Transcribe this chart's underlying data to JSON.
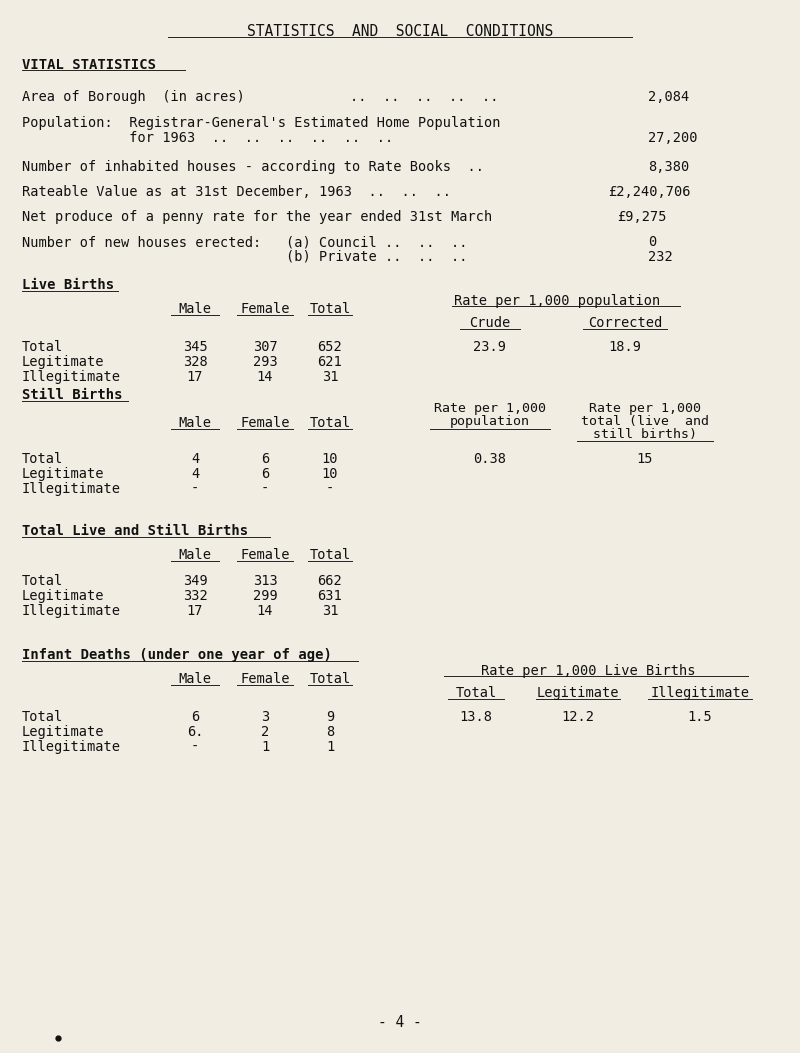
{
  "title": "STATISTICS  AND  SOCIAL  CONDITIONS",
  "bg_color": "#f2ede3",
  "text_color": "#1a1a1a",
  "live_births": {
    "header": "Live Births",
    "rows": [
      {
        "label": "Total",
        "male": "345",
        "female": "307",
        "total": "652",
        "crude": "23.9",
        "corrected": "18.9"
      },
      {
        "label": "Legitimate",
        "male": "328",
        "female": "293",
        "total": "621",
        "crude": "",
        "corrected": ""
      },
      {
        "label": "Illegitimate",
        "male": "17",
        "female": "14",
        "total": "31",
        "crude": "",
        "corrected": ""
      }
    ]
  },
  "still_births": {
    "header": "Still Births",
    "rows": [
      {
        "label": "Total",
        "male": "4",
        "female": "6",
        "total": "10",
        "rate1": "0.38",
        "rate2": "15"
      },
      {
        "label": "Legitimate",
        "male": "4",
        "female": "6",
        "total": "10",
        "rate1": "",
        "rate2": ""
      },
      {
        "label": "Illegitimate",
        "male": "-",
        "female": "-",
        "total": "-",
        "rate1": "",
        "rate2": ""
      }
    ]
  },
  "total_births": {
    "header": "Total Live and Still Births",
    "rows": [
      {
        "label": "Total",
        "male": "349",
        "female": "313",
        "total": "662"
      },
      {
        "label": "Legitimate",
        "male": "332",
        "female": "299",
        "total": "631"
      },
      {
        "label": "Illegitimate",
        "male": "17",
        "female": "14",
        "total": "31"
      }
    ]
  },
  "infant_deaths": {
    "header": "Infant Deaths (under one year of age)",
    "rows": [
      {
        "label": "Total",
        "male": "6",
        "female": "3",
        "total": "9",
        "r_total": "13.8",
        "r_legit": "12.2",
        "r_illeg": "1.5"
      },
      {
        "label": "Legitimate",
        "male": "6.",
        "female": "2",
        "total": "8",
        "r_total": "",
        "r_legit": "",
        "r_illeg": ""
      },
      {
        "label": "Illegitimate",
        "male": "-",
        "female": "1",
        "total": "1",
        "r_total": "",
        "r_legit": "",
        "r_illeg": ""
      }
    ]
  },
  "footer": "- 4 -"
}
